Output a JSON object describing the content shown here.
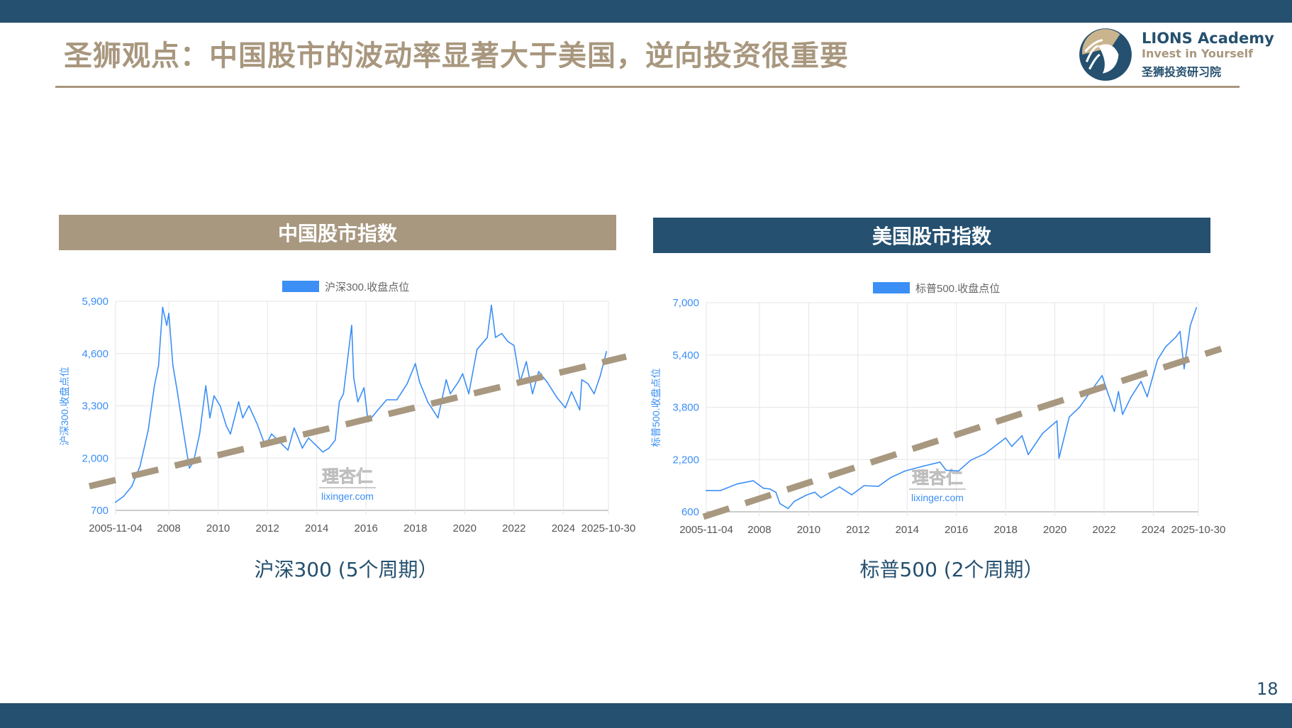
{
  "header": {
    "title": "圣狮观点：中国股市的波动率显著大于美国，逆向投资很重要"
  },
  "logo": {
    "name": "LIONS Academy",
    "tagline": "Invest in Yourself",
    "cn_name": "圣狮投资研习院"
  },
  "panels": {
    "left": {
      "header": "中国股市指数",
      "caption": "沪深300 (5个周期）"
    },
    "right": {
      "header": "美国股市指数",
      "caption": "标普500 (2个周期）"
    }
  },
  "page_number": "18",
  "colors": {
    "navy": "#25506f",
    "tan": "#a8977e",
    "series": "#3b8ff5",
    "trend": "#a89880"
  },
  "chart_data": [
    {
      "type": "line",
      "legend": "沪深300.收盘点位",
      "legend_position": "top-center",
      "ylabel": "沪深300.收盘点位",
      "ylim": [
        700,
        5900
      ],
      "yticks": [
        "700",
        "2,000",
        "3,300",
        "4,600",
        "5,900"
      ],
      "ytick_values": [
        700,
        2000,
        3300,
        4600,
        5900
      ],
      "xlim": [
        "2005-11-04",
        "2025-10-30"
      ],
      "xticks": [
        "2005-11-04",
        "2008",
        "2010",
        "2012",
        "2014",
        "2016",
        "2018",
        "2020",
        "2022",
        "2024",
        "2025-10-30"
      ],
      "grid": true,
      "watermark": "理杏仁 lixinger.com",
      "trendline": "dashed rising",
      "points": [
        [
          "2005-11",
          900
        ],
        [
          "2006-03",
          1050
        ],
        [
          "2006-07",
          1300
        ],
        [
          "2006-11",
          1800
        ],
        [
          "2007-03",
          2700
        ],
        [
          "2007-06",
          3800
        ],
        [
          "2007-08",
          4300
        ],
        [
          "2007-10",
          5750
        ],
        [
          "2007-12",
          5300
        ],
        [
          "2008-01",
          5600
        ],
        [
          "2008-03",
          4300
        ],
        [
          "2008-05",
          3700
        ],
        [
          "2008-08",
          2700
        ],
        [
          "2008-11",
          1750
        ],
        [
          "2009-01",
          1900
        ],
        [
          "2009-04",
          2600
        ],
        [
          "2009-07",
          3800
        ],
        [
          "2009-09",
          3000
        ],
        [
          "2009-11",
          3550
        ],
        [
          "2010-02",
          3300
        ],
        [
          "2010-05",
          2800
        ],
        [
          "2010-07",
          2600
        ],
        [
          "2010-11",
          3400
        ],
        [
          "2011-01",
          3000
        ],
        [
          "2011-04",
          3300
        ],
        [
          "2011-08",
          2850
        ],
        [
          "2011-12",
          2300
        ],
        [
          "2012-03",
          2600
        ],
        [
          "2012-07",
          2400
        ],
        [
          "2012-11",
          2200
        ],
        [
          "2013-02",
          2750
        ],
        [
          "2013-06",
          2250
        ],
        [
          "2013-09",
          2500
        ],
        [
          "2013-12",
          2350
        ],
        [
          "2014-04",
          2150
        ],
        [
          "2014-07",
          2250
        ],
        [
          "2014-10",
          2450
        ],
        [
          "2014-12",
          3400
        ],
        [
          "2015-02",
          3600
        ],
        [
          "2015-06",
          5300
        ],
        [
          "2015-07",
          4000
        ],
        [
          "2015-09",
          3400
        ],
        [
          "2015-12",
          3750
        ],
        [
          "2016-02",
          2900
        ],
        [
          "2016-06",
          3150
        ],
        [
          "2016-11",
          3450
        ],
        [
          "2017-04",
          3450
        ],
        [
          "2017-09",
          3850
        ],
        [
          "2018-01",
          4350
        ],
        [
          "2018-03",
          3900
        ],
        [
          "2018-07",
          3400
        ],
        [
          "2018-12",
          3000
        ],
        [
          "2019-04",
          3950
        ],
        [
          "2019-06",
          3600
        ],
        [
          "2019-10",
          3900
        ],
        [
          "2019-12",
          4100
        ],
        [
          "2020-03",
          3600
        ],
        [
          "2020-07",
          4700
        ],
        [
          "2020-12",
          5000
        ],
        [
          "2021-02",
          5800
        ],
        [
          "2021-04",
          5000
        ],
        [
          "2021-07",
          5100
        ],
        [
          "2021-10",
          4900
        ],
        [
          "2022-01",
          4800
        ],
        [
          "2022-04",
          3900
        ],
        [
          "2022-07",
          4400
        ],
        [
          "2022-10",
          3600
        ],
        [
          "2023-01",
          4150
        ],
        [
          "2023-05",
          3900
        ],
        [
          "2023-10",
          3500
        ],
        [
          "2024-02",
          3250
        ],
        [
          "2024-05",
          3650
        ],
        [
          "2024-09",
          3200
        ],
        [
          "2024-10",
          3950
        ],
        [
          "2025-01",
          3850
        ],
        [
          "2025-04",
          3600
        ],
        [
          "2025-07",
          4050
        ],
        [
          "2025-10",
          4650
        ]
      ]
    },
    {
      "type": "line",
      "legend": "标普500.收盘点位",
      "legend_position": "top-center",
      "ylabel": "标普500.收盘点位",
      "ylim": [
        600,
        7000
      ],
      "yticks": [
        "600",
        "2,200",
        "3,800",
        "5,400",
        "7,000"
      ],
      "ytick_values": [
        600,
        2200,
        3800,
        5400,
        7000
      ],
      "xlim": [
        "2005-11-04",
        "2025-10-30"
      ],
      "xticks": [
        "2005-11-04",
        "2008",
        "2010",
        "2012",
        "2014",
        "2016",
        "2018",
        "2020",
        "2022",
        "2024",
        "2025-10-30"
      ],
      "grid": true,
      "watermark": "理杏仁 lixinger.com",
      "trendline": "dashed rising",
      "points": [
        [
          "2005-11",
          1250
        ],
        [
          "2006-06",
          1250
        ],
        [
          "2007-02",
          1450
        ],
        [
          "2007-10",
          1550
        ],
        [
          "2008-03",
          1320
        ],
        [
          "2008-06",
          1300
        ],
        [
          "2008-09",
          1200
        ],
        [
          "2008-11",
          850
        ],
        [
          "2009-03",
          700
        ],
        [
          "2009-06",
          920
        ],
        [
          "2009-12",
          1115
        ],
        [
          "2010-04",
          1200
        ],
        [
          "2010-07",
          1030
        ],
        [
          "2011-04",
          1360
        ],
        [
          "2011-10",
          1120
        ],
        [
          "2012-04",
          1400
        ],
        [
          "2012-11",
          1380
        ],
        [
          "2013-05",
          1650
        ],
        [
          "2013-12",
          1850
        ],
        [
          "2014-09",
          2000
        ],
        [
          "2015-05",
          2120
        ],
        [
          "2015-08",
          1870
        ],
        [
          "2016-02",
          1850
        ],
        [
          "2016-08",
          2180
        ],
        [
          "2017-03",
          2380
        ],
        [
          "2018-01",
          2860
        ],
        [
          "2018-04",
          2600
        ],
        [
          "2018-09",
          2930
        ],
        [
          "2018-12",
          2350
        ],
        [
          "2019-07",
          3000
        ],
        [
          "2020-02",
          3380
        ],
        [
          "2020-03",
          2240
        ],
        [
          "2020-08",
          3500
        ],
        [
          "2021-01",
          3800
        ],
        [
          "2021-12",
          4770
        ],
        [
          "2022-03",
          4200
        ],
        [
          "2022-06",
          3670
        ],
        [
          "2022-08",
          4280
        ],
        [
          "2022-10",
          3580
        ],
        [
          "2023-02",
          4100
        ],
        [
          "2023-07",
          4590
        ],
        [
          "2023-10",
          4120
        ],
        [
          "2024-03",
          5250
        ],
        [
          "2024-07",
          5650
        ],
        [
          "2024-12",
          5950
        ],
        [
          "2025-02",
          6120
        ],
        [
          "2025-04",
          4980
        ],
        [
          "2025-07",
          6300
        ],
        [
          "2025-10",
          6850
        ]
      ]
    }
  ]
}
